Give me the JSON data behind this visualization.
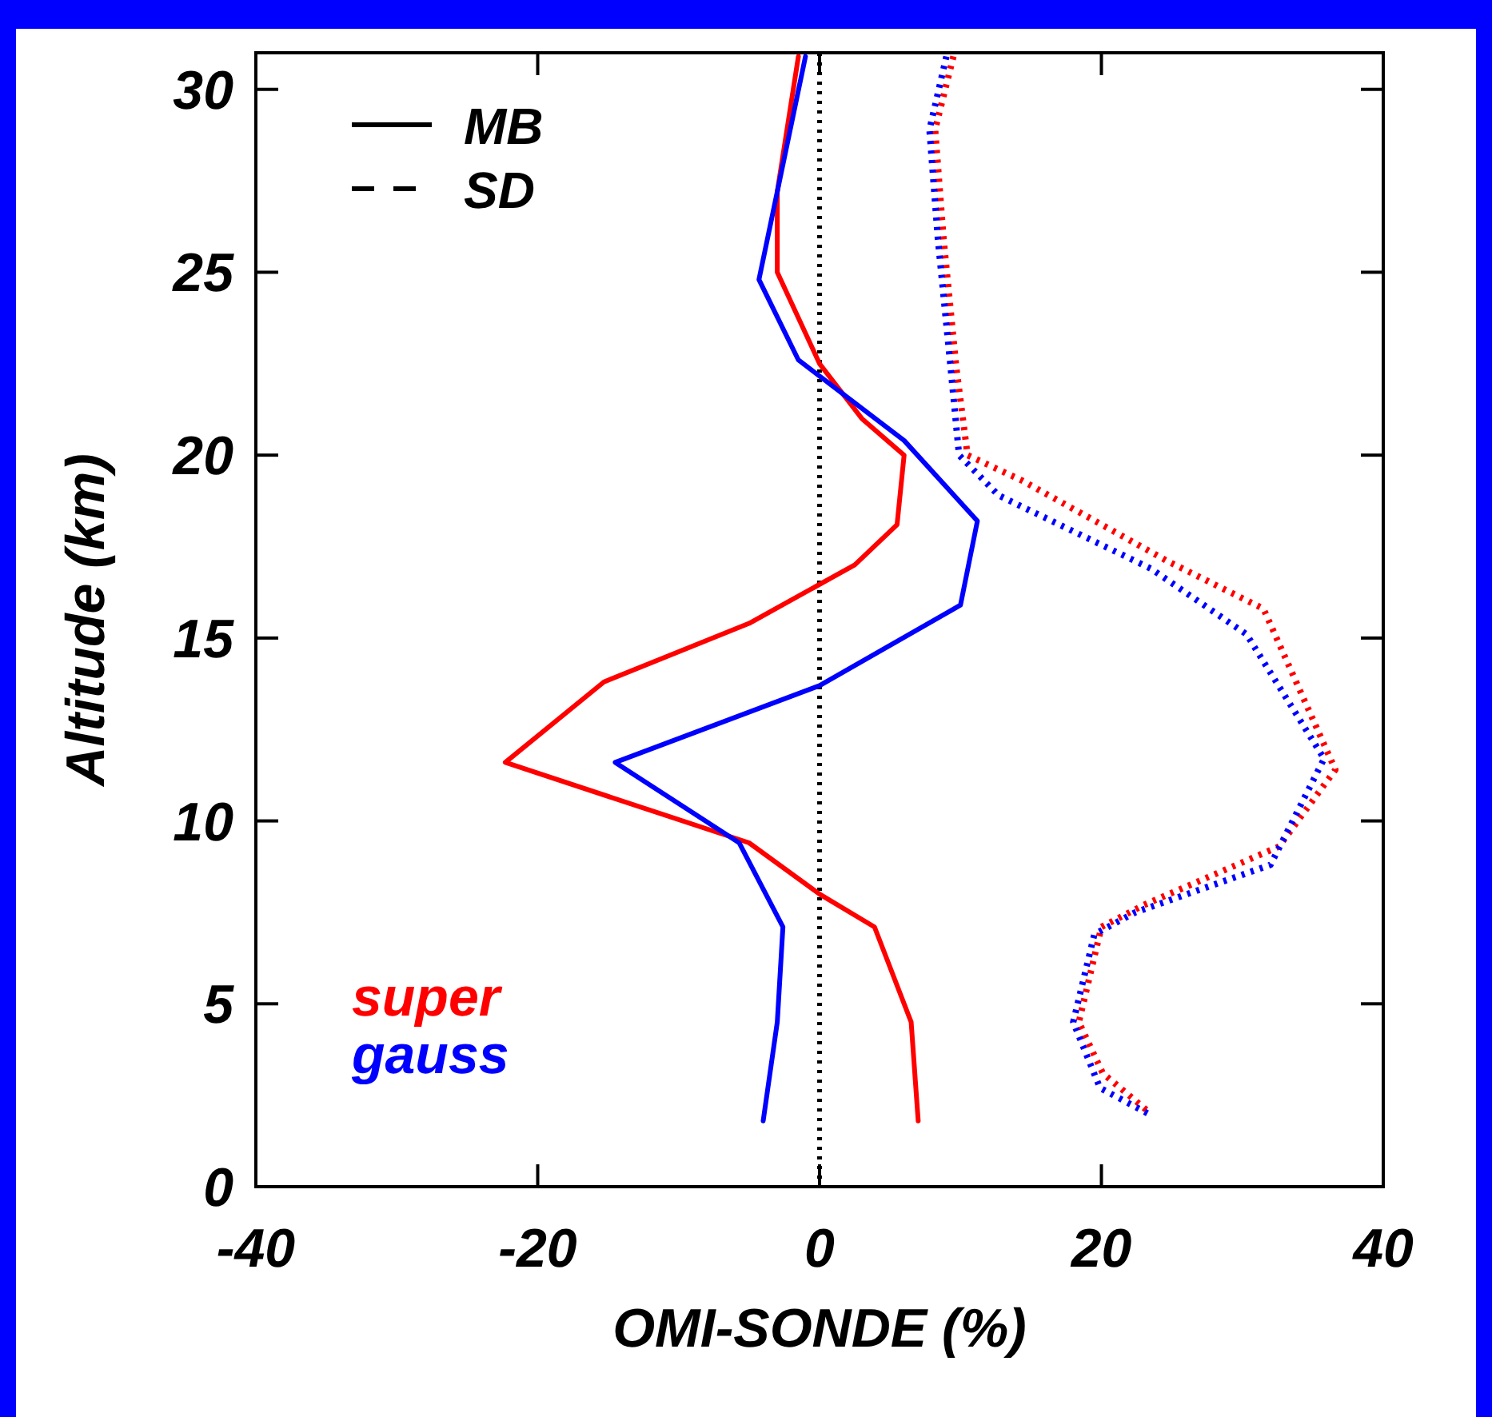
{
  "chart_data": {
    "type": "line",
    "xlabel": "OMI-SONDE (%)",
    "ylabel": "Altitude (km)",
    "xlim": [
      -40,
      40
    ],
    "xticks": [
      -40,
      -20,
      0,
      20,
      40
    ],
    "ylim": [
      0,
      31
    ],
    "yticks": [
      0,
      5,
      10,
      15,
      20,
      25,
      30
    ],
    "legend": "bottom left",
    "annotations": [
      "MB",
      "SD"
    ],
    "ref_lines": [
      {
        "axis": "x",
        "value": 0,
        "color": "#000000",
        "line_style": "dotted"
      }
    ],
    "series": [
      {
        "name": "super",
        "color": "#ff0000",
        "line_style": "solid",
        "x": [
          -1.5,
          -3,
          -3,
          0,
          3,
          6,
          5.5,
          2.5,
          -5,
          -15.3,
          -22.3,
          -5,
          0,
          3.9,
          6.5,
          7
        ],
        "values": [
          30.9,
          27.2,
          25,
          22.5,
          21,
          20,
          18.1,
          17,
          15.4,
          13.8,
          11.6,
          9.4,
          8,
          7.1,
          4.5,
          1.8
        ]
      },
      {
        "name": "gauss",
        "color": "#0000ff",
        "line_style": "solid",
        "x": [
          -1,
          -4.3,
          -1.5,
          6,
          11.2,
          10,
          0,
          -14.5,
          -5.7,
          -2.6,
          -3,
          -4
        ],
        "values": [
          30.9,
          24.8,
          22.6,
          20.4,
          18.2,
          15.9,
          13.7,
          11.6,
          9.4,
          7.1,
          4.5,
          1.8
        ]
      },
      {
        "color": "#ff0000",
        "line_style": "dotted",
        "x": [
          9.5,
          8.2,
          8.8,
          9.7,
          10.5,
          14.4,
          24.7,
          31.5,
          36.6,
          32.6,
          23,
          20,
          18.4,
          20.1,
          23.5
        ],
        "values": [
          30.9,
          28.9,
          25.9,
          22.4,
          20,
          19.3,
          17.1,
          15.8,
          11.4,
          9.3,
          7.7,
          7.1,
          4.5,
          3.1,
          2
        ]
      },
      {
        "color": "#0000ff",
        "line_style": "dotted",
        "x": [
          9,
          7.8,
          8.4,
          9.3,
          9.9,
          12.7,
          23.5,
          30.3,
          35.8,
          32,
          22.4,
          19.5,
          18,
          19.9,
          23.3
        ],
        "values": [
          30.9,
          28.9,
          25.9,
          22.4,
          20,
          18.9,
          16.9,
          15.1,
          11.7,
          8.8,
          7.5,
          6.9,
          4.5,
          2.7,
          2
        ]
      }
    ]
  }
}
